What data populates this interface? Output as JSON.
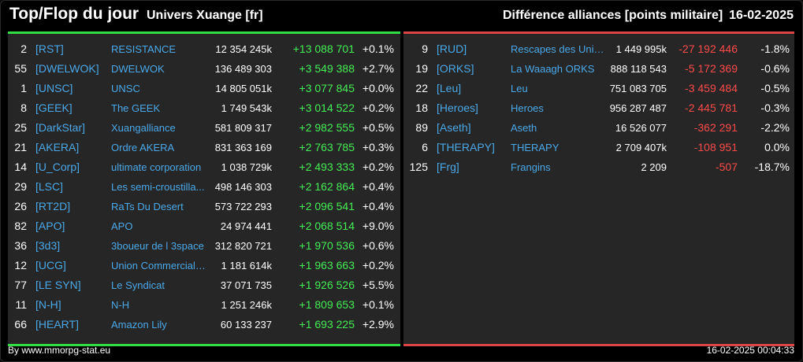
{
  "header": {
    "title": "Top/Flop du jour",
    "subtitle": "Univers Xuange [fr]",
    "metric": "Différence alliances [points militaire]",
    "date": "16-02-2025"
  },
  "colors": {
    "positive": "#44ee55",
    "negative": "#ff4a4a",
    "tag": "#4aa8e8",
    "top_bar": "#33dd44",
    "flop_bar": "#dd4444"
  },
  "top": [
    {
      "rank": "2",
      "tag": "[RST]",
      "name": "RESISTANCE",
      "points": "12 354 245k",
      "diff": "+13 088 701",
      "pct": "+0.1%"
    },
    {
      "rank": "55",
      "tag": "[DWELWOK]",
      "name": "DWELWOK",
      "points": "136 489 303",
      "diff": "+3 549 388",
      "pct": "+2.7%"
    },
    {
      "rank": "1",
      "tag": "[UNSC]",
      "name": "UNSC",
      "points": "14 805 051k",
      "diff": "+3 077 845",
      "pct": "+0.0%"
    },
    {
      "rank": "8",
      "tag": "[GEEK]",
      "name": "The GEEK",
      "points": "1 749 543k",
      "diff": "+3 014 522",
      "pct": "+0.2%"
    },
    {
      "rank": "25",
      "tag": "[DarkStar]",
      "name": "Xuangalliance",
      "points": "581 809 317",
      "diff": "+2 982 555",
      "pct": "+0.5%"
    },
    {
      "rank": "21",
      "tag": "[AKERA]",
      "name": "Ordre AKERA",
      "points": "831 363 169",
      "diff": "+2 763 785",
      "pct": "+0.3%"
    },
    {
      "rank": "14",
      "tag": "[U_Corp]",
      "name": "ultimate corporation",
      "points": "1 038 729k",
      "diff": "+2 493 333",
      "pct": "+0.2%"
    },
    {
      "rank": "29",
      "tag": "[LSC]",
      "name": "Les semi-croustilla...",
      "points": "498 146 303",
      "diff": "+2 162 864",
      "pct": "+0.4%"
    },
    {
      "rank": "26",
      "tag": "[RT2D]",
      "name": "RaTs Du Desert",
      "points": "573 722 293",
      "diff": "+2 096 541",
      "pct": "+0.4%"
    },
    {
      "rank": "82",
      "tag": "[APO]",
      "name": "APO",
      "points": "24 974 441",
      "diff": "+2 068 514",
      "pct": "+9.0%"
    },
    {
      "rank": "36",
      "tag": "[3d3]",
      "name": "3boueur de l 3space",
      "points": "312 820 721",
      "diff": "+1 970 536",
      "pct": "+0.6%"
    },
    {
      "rank": "12",
      "tag": "[UCG]",
      "name": "Union Commerciale...",
      "points": "1 181 614k",
      "diff": "+1 963 663",
      "pct": "+0.2%"
    },
    {
      "rank": "77",
      "tag": "[LE SYN]",
      "name": "Le Syndicat",
      "points": "37 071 735",
      "diff": "+1 926 526",
      "pct": "+5.5%"
    },
    {
      "rank": "11",
      "tag": "[N-H]",
      "name": "N-H",
      "points": "1 251 246k",
      "diff": "+1 809 653",
      "pct": "+0.1%"
    },
    {
      "rank": "66",
      "tag": "[HEART]",
      "name": "Amazon Lily",
      "points": "60 133 237",
      "diff": "+1 693 225",
      "pct": "+2.9%"
    }
  ],
  "flop": [
    {
      "rank": "9",
      "tag": "[RUD]",
      "name": "Rescapes des Univ...",
      "points": "1 449 995k",
      "diff": "-27 192 446",
      "pct": "-1.8%"
    },
    {
      "rank": "19",
      "tag": "[ORKS]",
      "name": "La Waaagh ORKS",
      "points": "888 118 543",
      "diff": "-5 172 369",
      "pct": "-0.6%"
    },
    {
      "rank": "22",
      "tag": "[Leu]",
      "name": "Leu",
      "points": "751 083 705",
      "diff": "-3 459 484",
      "pct": "-0.5%"
    },
    {
      "rank": "18",
      "tag": "[Heroes]",
      "name": "Heroes",
      "points": "956 287 487",
      "diff": "-2 445 781",
      "pct": "-0.3%"
    },
    {
      "rank": "89",
      "tag": "[Aseth]",
      "name": "Aseth",
      "points": "16 526 077",
      "diff": "-362 291",
      "pct": "-2.2%"
    },
    {
      "rank": "6",
      "tag": "[THERAPY]",
      "name": "THERAPY",
      "points": "2 709 407k",
      "diff": "-108 951",
      "pct": "0.0%"
    },
    {
      "rank": "125",
      "tag": "[Frg]",
      "name": "Frangins",
      "points": "2 209",
      "diff": "-507",
      "pct": "-18.7%"
    }
  ],
  "footer": {
    "source": "By www.mmorpg-stat.eu",
    "timestamp": "16-02-2025 00:04:33"
  }
}
